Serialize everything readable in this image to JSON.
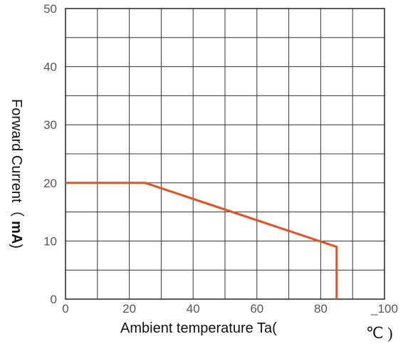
{
  "chart_data": {
    "type": "line",
    "xlabel": "Ambient temperature Ta(",
    "xlabel_unit": "℃ )",
    "ylabel_parts": [
      "Forward Current（ ",
      "mA",
      ")"
    ],
    "xlim": [
      0,
      100
    ],
    "ylim": [
      0,
      50
    ],
    "x_ticks": [
      0,
      20,
      40,
      60,
      80,
      100
    ],
    "x_tick_labels": [
      "0",
      "20",
      "40",
      "60",
      "80",
      "_100"
    ],
    "y_ticks": [
      0,
      10,
      20,
      30,
      40,
      50
    ],
    "y_tick_labels": [
      "0",
      "10",
      "20",
      "30",
      "40",
      "50"
    ],
    "grid": true,
    "grid_x_step": 10,
    "grid_y_step": 5,
    "series": [
      {
        "x": [
          0,
          25,
          85,
          85
        ],
        "y": [
          20,
          20,
          9,
          0
        ],
        "color": "#e8501e"
      }
    ]
  }
}
